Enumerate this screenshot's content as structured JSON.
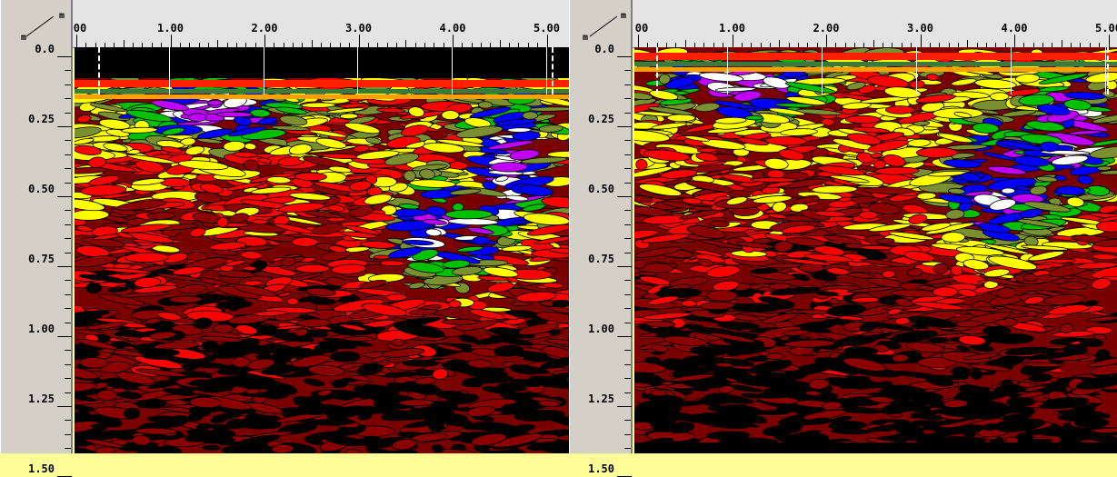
{
  "axes": {
    "corner_unit_top": "m",
    "corner_unit_left": "m",
    "depth_labels": [
      "0.0",
      "0.25",
      "0.50",
      "0.75",
      "1.00",
      "1.25",
      "1.50"
    ],
    "distance_labels_left": [
      "00",
      "1.00",
      "2.00",
      "3.00",
      "4.00",
      "5.00"
    ],
    "distance_labels_right": [
      "00",
      "1.00",
      "2.00",
      "3.00",
      "4.00",
      "5.00"
    ]
  },
  "colors": {
    "background": "#FEFE99",
    "palette": [
      "#000000",
      "#8B0000",
      "#FF0000",
      "#FF6A00",
      "#FFFF00",
      "#7A8F30",
      "#00C000",
      "#0000FF",
      "#C000FF",
      "#FFFFFF"
    ]
  },
  "panels": [
    {
      "name": "left",
      "air_gap_depth": 0.17,
      "bottom_black_depth": null
    },
    {
      "name": "right",
      "air_gap_depth": 0.0,
      "bottom_black_depth": 1.38
    }
  ]
}
